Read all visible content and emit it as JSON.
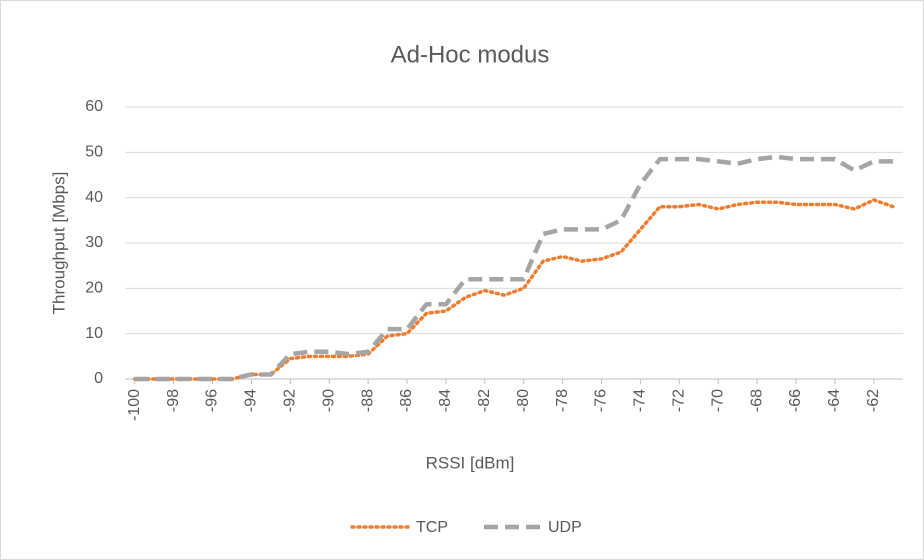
{
  "chart_data": {
    "type": "line",
    "title": "Ad-Hoc modus",
    "x_label": "RSSI [dBm]",
    "y_label": "Throughput [Mbps]",
    "x": [
      -100,
      -99,
      -98,
      -97,
      -96,
      -95,
      -94,
      -93,
      -92,
      -91,
      -90,
      -89,
      -88,
      -87,
      -86,
      -85,
      -84,
      -83,
      -82,
      -81,
      -80,
      -79,
      -78,
      -77,
      -76,
      -75,
      -74,
      -73,
      -72,
      -71,
      -70,
      -69,
      -68,
      -67,
      -66,
      -65,
      -64,
      -63,
      -62,
      -61
    ],
    "series": [
      {
        "name": "TCP",
        "color": "#ed7d31",
        "dash": "dotted",
        "values": [
          0,
          0,
          0,
          0,
          0,
          0,
          1,
          1,
          4.5,
          5,
          5,
          5,
          5.5,
          9.5,
          10,
          14.5,
          15,
          18,
          19.5,
          18.5,
          20,
          26,
          27,
          26,
          26.5,
          28,
          33,
          38,
          38,
          38.5,
          37.5,
          38.5,
          39,
          39,
          38.5,
          38.5,
          38.5,
          37.5,
          39.5,
          38
        ]
      },
      {
        "name": "UDP",
        "color": "#a5a5a5",
        "dash": "dashed",
        "values": [
          0,
          0,
          0,
          0,
          0,
          0,
          1,
          1,
          5.5,
          6,
          6,
          5.5,
          6,
          11,
          11,
          16.5,
          16.5,
          22,
          22,
          22,
          22,
          32,
          33,
          33,
          33,
          35,
          43,
          48.5,
          48.5,
          48.5,
          48,
          47.5,
          48.5,
          49,
          48.5,
          48.5,
          48.5,
          46,
          48,
          48
        ]
      }
    ],
    "xlim": [
      -100.5,
      -60.5
    ],
    "xticks": [
      -100,
      -98,
      -96,
      -94,
      -92,
      -90,
      -88,
      -86,
      -84,
      -82,
      -80,
      -78,
      -76,
      -74,
      -72,
      -70,
      -68,
      -66,
      -64,
      -62
    ],
    "ylim": [
      0,
      60
    ],
    "yticks": [
      0,
      10,
      20,
      30,
      40,
      50,
      60
    ],
    "grid": true,
    "legend": "bottom"
  }
}
